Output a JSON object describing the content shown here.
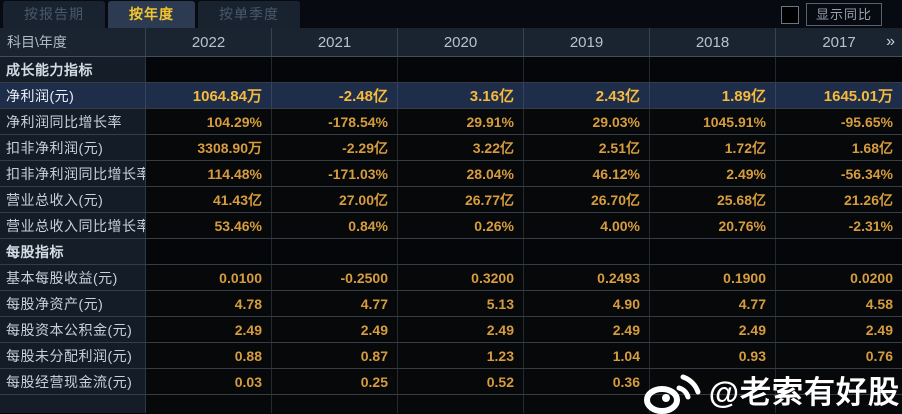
{
  "tabs": [
    {
      "label": "按报告期",
      "active": false
    },
    {
      "label": "按年度",
      "active": true
    },
    {
      "label": "按单季度",
      "active": false
    }
  ],
  "controls": {
    "show_yoy_label": "显示同比",
    "checkbox_checked": false
  },
  "table": {
    "corner_label": "科目\\年度",
    "years": [
      "2022",
      "2021",
      "2020",
      "2019",
      "2018",
      "2017"
    ],
    "more_icon": "»",
    "rows": [
      {
        "type": "section",
        "label": "成长能力指标"
      },
      {
        "type": "data",
        "label": "净利润(元)",
        "highlight": true,
        "values": [
          "1064.84万",
          "-2.48亿",
          "3.16亿",
          "2.43亿",
          "1.89亿",
          "1645.01万"
        ]
      },
      {
        "type": "data",
        "label": "净利润同比增长率",
        "values": [
          "104.29%",
          "-178.54%",
          "29.91%",
          "29.03%",
          "1045.91%",
          "-95.65%"
        ]
      },
      {
        "type": "data",
        "label": "扣非净利润(元)",
        "values": [
          "3308.90万",
          "-2.29亿",
          "3.22亿",
          "2.51亿",
          "1.72亿",
          "1.68亿"
        ]
      },
      {
        "type": "data",
        "label": "扣非净利润同比增长率",
        "values": [
          "114.48%",
          "-171.03%",
          "28.04%",
          "46.12%",
          "2.49%",
          "-56.34%"
        ]
      },
      {
        "type": "data",
        "label": "营业总收入(元)",
        "values": [
          "41.43亿",
          "27.00亿",
          "26.77亿",
          "26.70亿",
          "25.68亿",
          "21.26亿"
        ]
      },
      {
        "type": "data",
        "label": "营业总收入同比增长率",
        "values": [
          "53.46%",
          "0.84%",
          "0.26%",
          "4.00%",
          "20.76%",
          "-2.31%"
        ]
      },
      {
        "type": "section",
        "label": "每股指标"
      },
      {
        "type": "data",
        "label": "基本每股收益(元)",
        "values": [
          "0.0100",
          "-0.2500",
          "0.3200",
          "0.2493",
          "0.1900",
          "0.0200"
        ]
      },
      {
        "type": "data",
        "label": "每股净资产(元)",
        "values": [
          "4.78",
          "4.77",
          "5.13",
          "4.90",
          "4.77",
          "4.58"
        ]
      },
      {
        "type": "data",
        "label": "每股资本公积金(元)",
        "values": [
          "2.49",
          "2.49",
          "2.49",
          "2.49",
          "2.49",
          "2.49"
        ]
      },
      {
        "type": "data",
        "label": "每股未分配利润(元)",
        "values": [
          "0.88",
          "0.87",
          "1.23",
          "1.04",
          "0.93",
          "0.76"
        ]
      },
      {
        "type": "data",
        "label": "每股经营现金流(元)",
        "values": [
          "0.03",
          "0.25",
          "0.52",
          "0.36",
          "",
          ""
        ]
      }
    ]
  },
  "watermark": {
    "handle": "@老索有好股",
    "logo": "weibo-icon"
  },
  "colors": {
    "accent_gold": "#f4c52e",
    "value_gold": "#d69c3e",
    "highlight_row_bg": "#1e2d49",
    "active_tab_bg": "#2c3a52",
    "header_row_bg": "#1a2431",
    "label_cell_bg": "#141c28",
    "watermark": "#ffffff"
  }
}
